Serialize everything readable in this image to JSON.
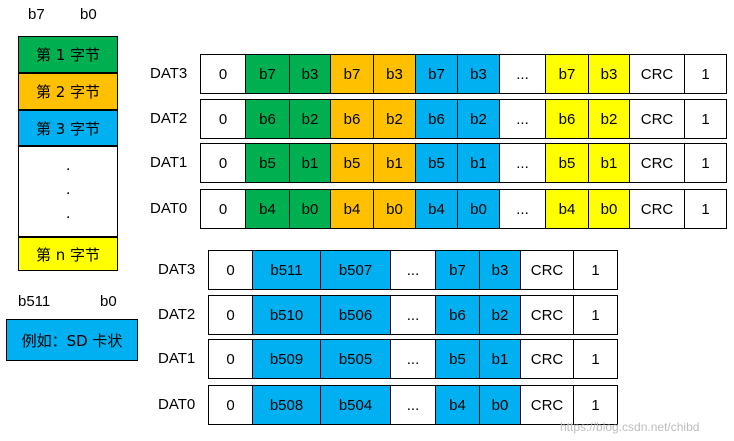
{
  "colors": {
    "green": "#00b050",
    "orange": "#ffc000",
    "blue": "#00b0f0",
    "yellow": "#ffff00",
    "white": "#ffffff"
  },
  "stack": {
    "top_labels": {
      "high": "b7",
      "low": "b0"
    },
    "bottom_labels": {
      "high": "b511",
      "low": "b0"
    },
    "cells": [
      {
        "text": "第 1 字节",
        "color": "green"
      },
      {
        "text": "第 2 字节",
        "color": "orange"
      },
      {
        "text": "第 3 字节",
        "color": "blue"
      },
      {
        "text": "",
        "color": "white"
      },
      {
        "text": "第 n 字节",
        "color": "yellow"
      }
    ],
    "dots": [
      ".",
      ".",
      "."
    ],
    "example": "例如：SD 卡状"
  },
  "table1": {
    "rows": [
      {
        "label": "DAT3",
        "cells": [
          {
            "text": "0",
            "color": "white"
          },
          {
            "text": "b7",
            "color": "green"
          },
          {
            "text": "b3",
            "color": "green"
          },
          {
            "text": "b7",
            "color": "orange"
          },
          {
            "text": "b3",
            "color": "orange"
          },
          {
            "text": "b7",
            "color": "blue"
          },
          {
            "text": "b3",
            "color": "blue"
          },
          {
            "text": "...",
            "color": "white"
          },
          {
            "text": "b7",
            "color": "yellow"
          },
          {
            "text": "b3",
            "color": "yellow"
          },
          {
            "text": "CRC",
            "color": "white"
          },
          {
            "text": "1",
            "color": "white"
          }
        ]
      },
      {
        "label": "DAT2",
        "cells": [
          {
            "text": "0",
            "color": "white"
          },
          {
            "text": "b6",
            "color": "green"
          },
          {
            "text": "b2",
            "color": "green"
          },
          {
            "text": "b6",
            "color": "orange"
          },
          {
            "text": "b2",
            "color": "orange"
          },
          {
            "text": "b6",
            "color": "blue"
          },
          {
            "text": "b2",
            "color": "blue"
          },
          {
            "text": "...",
            "color": "white"
          },
          {
            "text": "b6",
            "color": "yellow"
          },
          {
            "text": "b2",
            "color": "yellow"
          },
          {
            "text": "CRC",
            "color": "white"
          },
          {
            "text": "1",
            "color": "white"
          }
        ]
      },
      {
        "label": "DAT1",
        "cells": [
          {
            "text": "0",
            "color": "white"
          },
          {
            "text": "b5",
            "color": "green"
          },
          {
            "text": "b1",
            "color": "green"
          },
          {
            "text": "b5",
            "color": "orange"
          },
          {
            "text": "b1",
            "color": "orange"
          },
          {
            "text": "b5",
            "color": "blue"
          },
          {
            "text": "b1",
            "color": "blue"
          },
          {
            "text": "...",
            "color": "white"
          },
          {
            "text": "b5",
            "color": "yellow"
          },
          {
            "text": "b1",
            "color": "yellow"
          },
          {
            "text": "CRC",
            "color": "white"
          },
          {
            "text": "1",
            "color": "white"
          }
        ]
      },
      {
        "label": "DAT0",
        "cells": [
          {
            "text": "0",
            "color": "white"
          },
          {
            "text": "b4",
            "color": "green"
          },
          {
            "text": "b0",
            "color": "green"
          },
          {
            "text": "b4",
            "color": "orange"
          },
          {
            "text": "b0",
            "color": "orange"
          },
          {
            "text": "b4",
            "color": "blue"
          },
          {
            "text": "b0",
            "color": "blue"
          },
          {
            "text": "...",
            "color": "white"
          },
          {
            "text": "b4",
            "color": "yellow"
          },
          {
            "text": "b0",
            "color": "yellow"
          },
          {
            "text": "CRC",
            "color": "white"
          },
          {
            "text": "1",
            "color": "white"
          }
        ]
      }
    ]
  },
  "table2": {
    "rows": [
      {
        "label": "DAT3",
        "cells": [
          {
            "text": "0",
            "color": "white"
          },
          {
            "text": "b511",
            "color": "blue"
          },
          {
            "text": "b507",
            "color": "blue"
          },
          {
            "text": "...",
            "color": "white"
          },
          {
            "text": "b7",
            "color": "blue"
          },
          {
            "text": "b3",
            "color": "blue"
          },
          {
            "text": "CRC",
            "color": "white"
          },
          {
            "text": "1",
            "color": "white"
          }
        ]
      },
      {
        "label": "DAT2",
        "cells": [
          {
            "text": "0",
            "color": "white"
          },
          {
            "text": "b510",
            "color": "blue"
          },
          {
            "text": "b506",
            "color": "blue"
          },
          {
            "text": "...",
            "color": "white"
          },
          {
            "text": "b6",
            "color": "blue"
          },
          {
            "text": "b2",
            "color": "blue"
          },
          {
            "text": "CRC",
            "color": "white"
          },
          {
            "text": "1",
            "color": "white"
          }
        ]
      },
      {
        "label": "DAT1",
        "cells": [
          {
            "text": "0",
            "color": "white"
          },
          {
            "text": "b509",
            "color": "blue"
          },
          {
            "text": "b505",
            "color": "blue"
          },
          {
            "text": "...",
            "color": "white"
          },
          {
            "text": "b5",
            "color": "blue"
          },
          {
            "text": "b1",
            "color": "blue"
          },
          {
            "text": "CRC",
            "color": "white"
          },
          {
            "text": "1",
            "color": "white"
          }
        ]
      },
      {
        "label": "DAT0",
        "cells": [
          {
            "text": "0",
            "color": "white"
          },
          {
            "text": "b508",
            "color": "blue"
          },
          {
            "text": "b504",
            "color": "blue"
          },
          {
            "text": "...",
            "color": "white"
          },
          {
            "text": "b4",
            "color": "blue"
          },
          {
            "text": "b0",
            "color": "blue"
          },
          {
            "text": "CRC",
            "color": "white"
          },
          {
            "text": "1",
            "color": "white"
          }
        ]
      }
    ]
  },
  "watermark": "https://blog.csdn.net/chibd"
}
